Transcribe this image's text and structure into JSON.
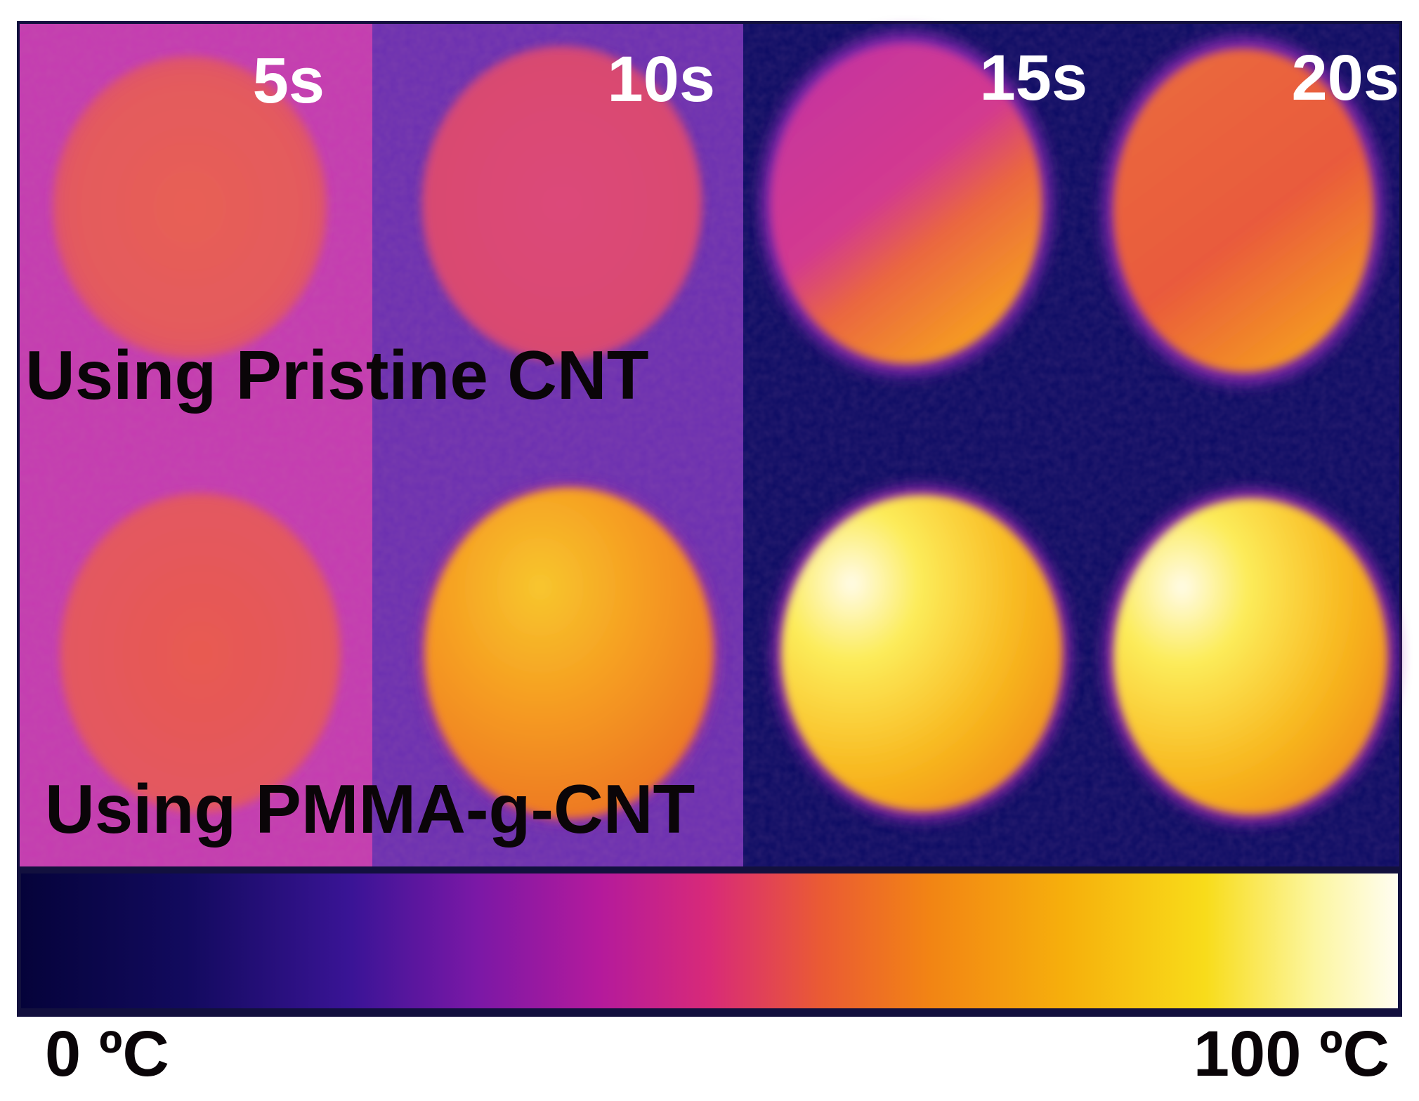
{
  "time_labels": [
    "5s",
    "10s",
    "15s",
    "20s"
  ],
  "row_labels": {
    "top": "Using Pristine CNT",
    "bottom": "Using PMMA-g-CNT"
  },
  "colorbar": {
    "min_label": "0 ºC",
    "max_label": "100 ºC",
    "stops": [
      "#05033a",
      "#1c0a78",
      "#5a14a3",
      "#a81aa0",
      "#d22c7e",
      "#e85a32",
      "#f28a12",
      "#f7c20c",
      "#fbf03a",
      "#fffbe8"
    ]
  },
  "colors": {
    "panel_5s_bg": "#c53bb0",
    "panel_10s_bg": "#6b2fb0",
    "panel_15_20s_bg": "#0a0a63",
    "frame": "#12103e"
  }
}
